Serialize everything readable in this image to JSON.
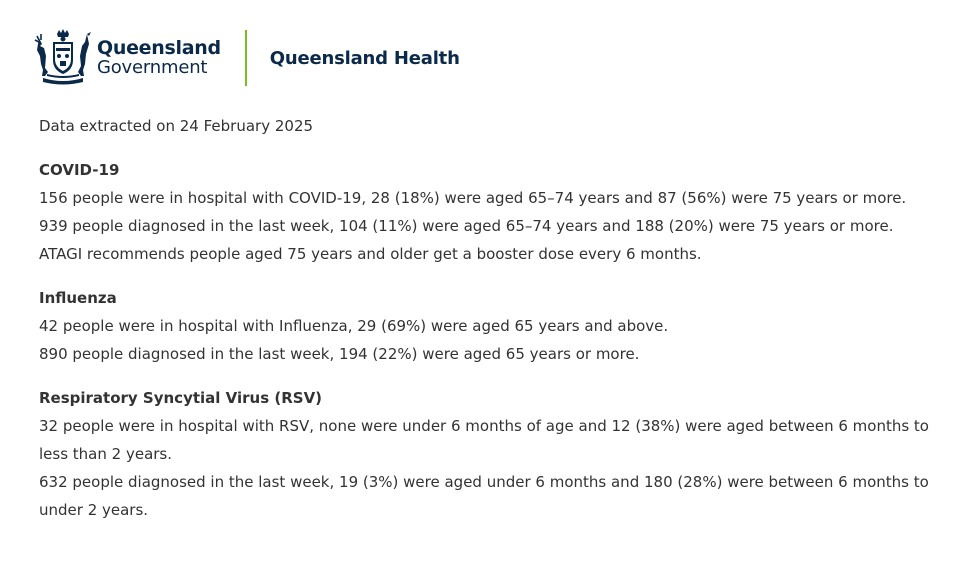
{
  "brand": {
    "government_line1": "Queensland",
    "government_line2": "Government",
    "department": "Queensland Health",
    "accent_color": "#78be20",
    "brand_color": "#0b2a4a",
    "logo_icon": "queensland-coat-of-arms-icon"
  },
  "report": {
    "extracted_text": "Data extracted on 24 February 2025",
    "sections": [
      {
        "heading": "COVID-19",
        "lines": [
          "156 people were in hospital with COVID-19, 28 (18%) were aged 65–74 years and 87 (56%) were 75 years or more.",
          "939 people diagnosed in the last week, 104 (11%) were aged 65–74 years and 188 (20%) were 75 years or more.",
          "ATAGI recommends people aged 75 years and older get a booster dose every 6 months."
        ]
      },
      {
        "heading": "Influenza",
        "lines": [
          "42 people were in hospital with Influenza, 29 (69%) were aged 65 years and above.",
          "890 people diagnosed in the last week, 194 (22%) were aged 65 years or more."
        ]
      },
      {
        "heading": "Respiratory Syncytial Virus (RSV)",
        "lines": [
          "32 people were in hospital with RSV, none were under 6 months of age and 12 (38%) were aged between 6 months to less than 2 years.",
          "632 people diagnosed in the last week, 19 (3%) were aged under 6 months and 180 (28%) were between 6 months to under 2 years."
        ]
      }
    ]
  }
}
